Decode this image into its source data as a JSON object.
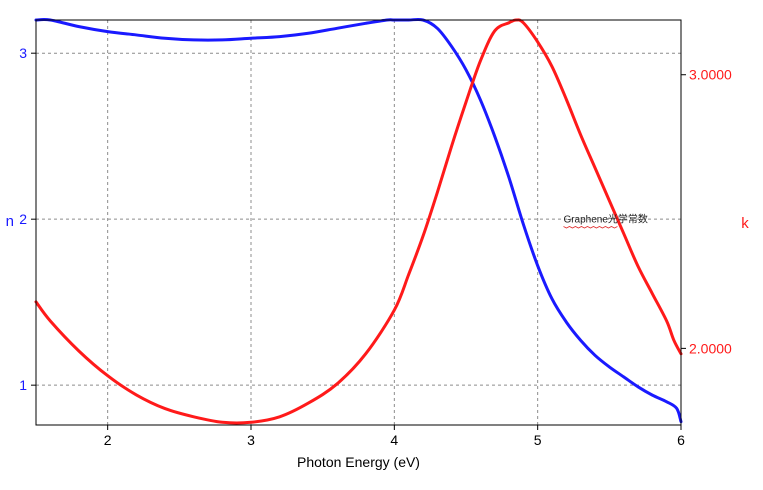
{
  "chart_data": {
    "type": "line",
    "title": "",
    "xlabel": "Photon Energy (eV)",
    "ylabel_left": "n",
    "ylabel_right": "k",
    "xlim": [
      1.5,
      6.0
    ],
    "ylim_left": [
      0.76,
      3.2
    ],
    "ylim_right": [
      1.72,
      3.2
    ],
    "x_ticks": [
      2,
      3,
      4,
      5,
      6
    ],
    "x_tick_labels": [
      "2",
      "3",
      "4",
      "5",
      "6"
    ],
    "left_ticks": [
      1,
      2,
      3
    ],
    "left_tick_labels": [
      "1",
      "2",
      "3"
    ],
    "right_ticks": [
      2.0,
      3.0
    ],
    "right_tick_labels": [
      "2.0000",
      "3.0000"
    ],
    "grid": true,
    "annotation": {
      "text": "Graphene光学常数",
      "x": 5.18,
      "y_left": 1.98
    },
    "series": [
      {
        "name": "n",
        "axis": "left",
        "color": "#1a1aff",
        "x": [
          1.5,
          1.6,
          1.8,
          2.0,
          2.2,
          2.4,
          2.6,
          2.8,
          3.0,
          3.2,
          3.4,
          3.6,
          3.8,
          3.95,
          4.0,
          4.1,
          4.2,
          4.3,
          4.4,
          4.5,
          4.6,
          4.7,
          4.8,
          4.9,
          5.0,
          5.1,
          5.2,
          5.3,
          5.4,
          5.5,
          5.6,
          5.7,
          5.8,
          5.9,
          5.97,
          6.0
        ],
        "y": [
          3.2,
          3.2,
          3.16,
          3.13,
          3.11,
          3.09,
          3.08,
          3.08,
          3.09,
          3.1,
          3.12,
          3.15,
          3.18,
          3.2,
          3.2,
          3.2,
          3.2,
          3.15,
          3.04,
          2.9,
          2.72,
          2.5,
          2.25,
          1.97,
          1.72,
          1.52,
          1.38,
          1.27,
          1.18,
          1.11,
          1.05,
          0.99,
          0.94,
          0.9,
          0.86,
          0.78
        ]
      },
      {
        "name": "k",
        "axis": "right",
        "color": "#ff1a1a",
        "x": [
          1.5,
          1.6,
          1.8,
          2.0,
          2.2,
          2.4,
          2.6,
          2.8,
          3.0,
          3.2,
          3.4,
          3.6,
          3.8,
          4.0,
          4.1,
          4.2,
          4.3,
          4.4,
          4.5,
          4.6,
          4.7,
          4.8,
          4.85,
          4.9,
          5.0,
          5.1,
          5.2,
          5.3,
          5.4,
          5.5,
          5.6,
          5.7,
          5.8,
          5.9,
          5.95,
          6.0
        ],
        "y": [
          2.17,
          2.1,
          1.99,
          1.9,
          1.83,
          1.78,
          1.75,
          1.73,
          1.73,
          1.75,
          1.8,
          1.87,
          1.98,
          2.14,
          2.27,
          2.41,
          2.57,
          2.74,
          2.9,
          3.05,
          3.16,
          3.19,
          3.2,
          3.19,
          3.12,
          3.03,
          2.91,
          2.78,
          2.66,
          2.54,
          2.42,
          2.3,
          2.2,
          2.1,
          2.03,
          1.98
        ]
      }
    ]
  }
}
